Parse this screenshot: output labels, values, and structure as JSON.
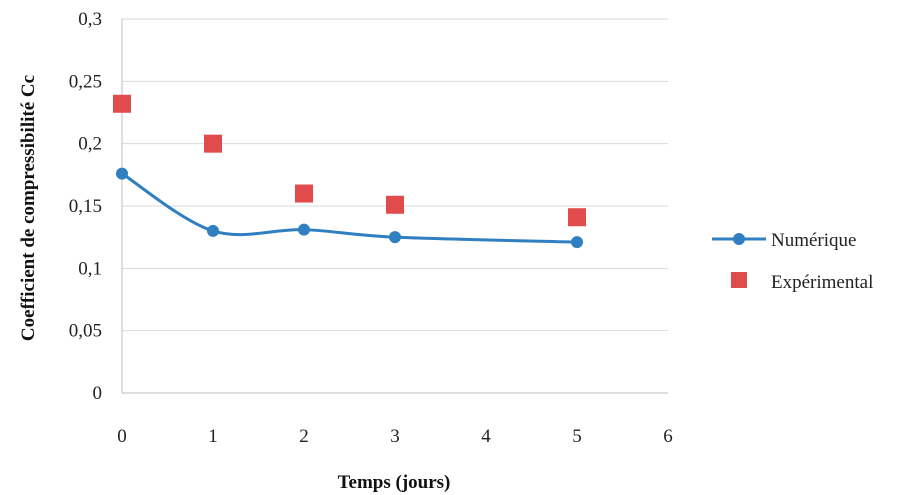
{
  "chart_data": {
    "type": "line",
    "xlabel": "Temps (jours)",
    "ylabel": "Coefficient de compressibilité  Cc",
    "xlim": [
      0,
      6
    ],
    "ylim": [
      0,
      0.3
    ],
    "x_ticks": [
      "0",
      "1",
      "2",
      "3",
      "4",
      "5",
      "6"
    ],
    "y_ticks": [
      "0",
      "0,05",
      "0,1",
      "0,15",
      "0,2",
      "0,25",
      "0,3"
    ],
    "grid": "horizontal",
    "legend_position": "right",
    "series": [
      {
        "name": "Numérique",
        "style": "smooth-line-with-circle-markers",
        "color": "#2f7fc1",
        "x": [
          0,
          1,
          2,
          3,
          5
        ],
        "y": [
          0.176,
          0.13,
          0.131,
          0.125,
          0.121
        ]
      },
      {
        "name": "Expérimental",
        "style": "square-markers",
        "color": "#e04b4b",
        "x": [
          0,
          1,
          2,
          3,
          5
        ],
        "y": [
          0.232,
          0.2,
          0.16,
          0.151,
          0.141
        ]
      }
    ]
  }
}
